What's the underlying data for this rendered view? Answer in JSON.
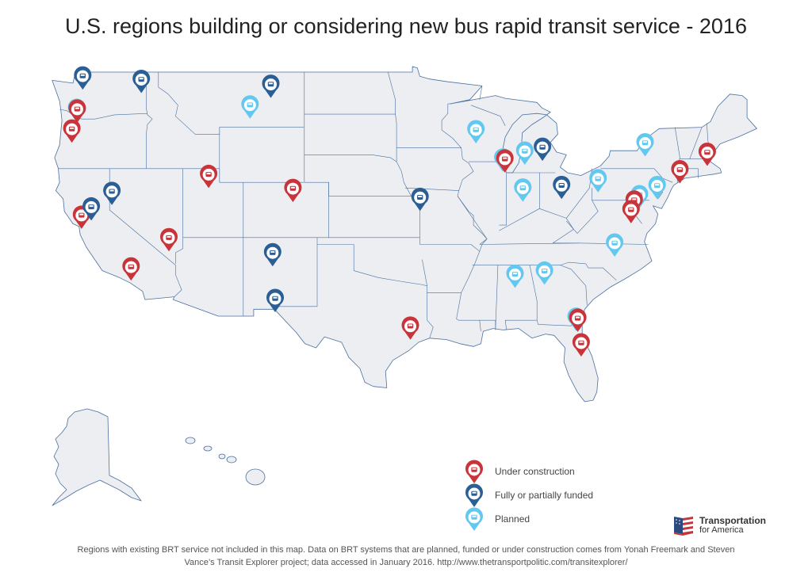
{
  "title": "U.S. regions building or considering new bus rapid transit service - 2016",
  "colors": {
    "under_construction": "#c9333a",
    "funded": "#2b5e94",
    "planned": "#62c8ef",
    "state_fill": "#eceef2",
    "state_border": "#4a6fa0"
  },
  "legend": {
    "under_construction": "Under construction",
    "funded": "Fully or partially funded",
    "planned": "Planned"
  },
  "markers": [
    {
      "status": "funded",
      "lon": -122.2,
      "lat": 47.9
    },
    {
      "status": "funded",
      "lon": -117.4,
      "lat": 47.65
    },
    {
      "status": "planned",
      "lon": -122.7,
      "lat": 45.55
    },
    {
      "status": "under_construction",
      "lon": -122.65,
      "lat": 45.5
    },
    {
      "status": "under_construction",
      "lon": -123.09,
      "lat": 44.05
    },
    {
      "status": "planned",
      "lon": -108.5,
      "lat": 45.8
    },
    {
      "status": "funded",
      "lon": -106.8,
      "lat": 47.3
    },
    {
      "status": "funded",
      "lon": -119.81,
      "lat": 39.53
    },
    {
      "status": "under_construction",
      "lon": -122.3,
      "lat": 37.8
    },
    {
      "status": "funded",
      "lon": -121.5,
      "lat": 38.4
    },
    {
      "status": "under_construction",
      "lon": -115.14,
      "lat": 36.17
    },
    {
      "status": "under_construction",
      "lon": -118.24,
      "lat": 34.05
    },
    {
      "status": "under_construction",
      "lon": -111.89,
      "lat": 40.76
    },
    {
      "status": "under_construction",
      "lon": -104.99,
      "lat": 39.74
    },
    {
      "status": "funded",
      "lon": -106.65,
      "lat": 35.08
    },
    {
      "status": "funded",
      "lon": -106.44,
      "lat": 31.76
    },
    {
      "status": "funded",
      "lon": -94.58,
      "lat": 39.1
    },
    {
      "status": "under_construction",
      "lon": -95.37,
      "lat": 29.76
    },
    {
      "status": "planned",
      "lon": -90.0,
      "lat": 44.0
    },
    {
      "status": "planned",
      "lon": -86.0,
      "lat": 42.45
    },
    {
      "status": "funded",
      "lon": -84.55,
      "lat": 42.73
    },
    {
      "status": "planned",
      "lon": -87.8,
      "lat": 41.95
    },
    {
      "status": "under_construction",
      "lon": -87.63,
      "lat": 41.88
    },
    {
      "status": "planned",
      "lon": -86.16,
      "lat": 39.77
    },
    {
      "status": "funded",
      "lon": -82.99,
      "lat": 39.96
    },
    {
      "status": "planned",
      "lon": -80.0,
      "lat": 40.44
    },
    {
      "status": "planned",
      "lon": -76.15,
      "lat": 43.05
    },
    {
      "status": "under_construction",
      "lon": -71.06,
      "lat": 42.36
    },
    {
      "status": "under_construction",
      "lon": -73.3,
      "lat": 41.1
    },
    {
      "status": "planned",
      "lon": -75.16,
      "lat": 39.95
    },
    {
      "status": "planned",
      "lon": -76.61,
      "lat": 39.29
    },
    {
      "status": "under_construction",
      "lon": -77.04,
      "lat": 38.9
    },
    {
      "status": "under_construction",
      "lon": -77.3,
      "lat": 38.2
    },
    {
      "status": "planned",
      "lon": -78.64,
      "lat": 35.78
    },
    {
      "status": "planned",
      "lon": -84.39,
      "lat": 33.75
    },
    {
      "status": "planned",
      "lon": -86.8,
      "lat": 33.52
    },
    {
      "status": "planned",
      "lon": -81.8,
      "lat": 30.4
    },
    {
      "status": "under_construction",
      "lon": -81.66,
      "lat": 30.33
    },
    {
      "status": "under_construction",
      "lon": -81.38,
      "lat": 28.54
    }
  ],
  "logo": {
    "line1": "Transportation",
    "line2": "for America"
  },
  "footer": {
    "line1": "Regions with existing BRT service not included in this map. Data on BRT systems that are planned, funded or under construction comes from Yonah Freemark and Steven",
    "line2": "Vance’s Transit Explorer project; data accessed in January 2016. http://www.thetransportpolitic.com/transitexplorer/"
  }
}
